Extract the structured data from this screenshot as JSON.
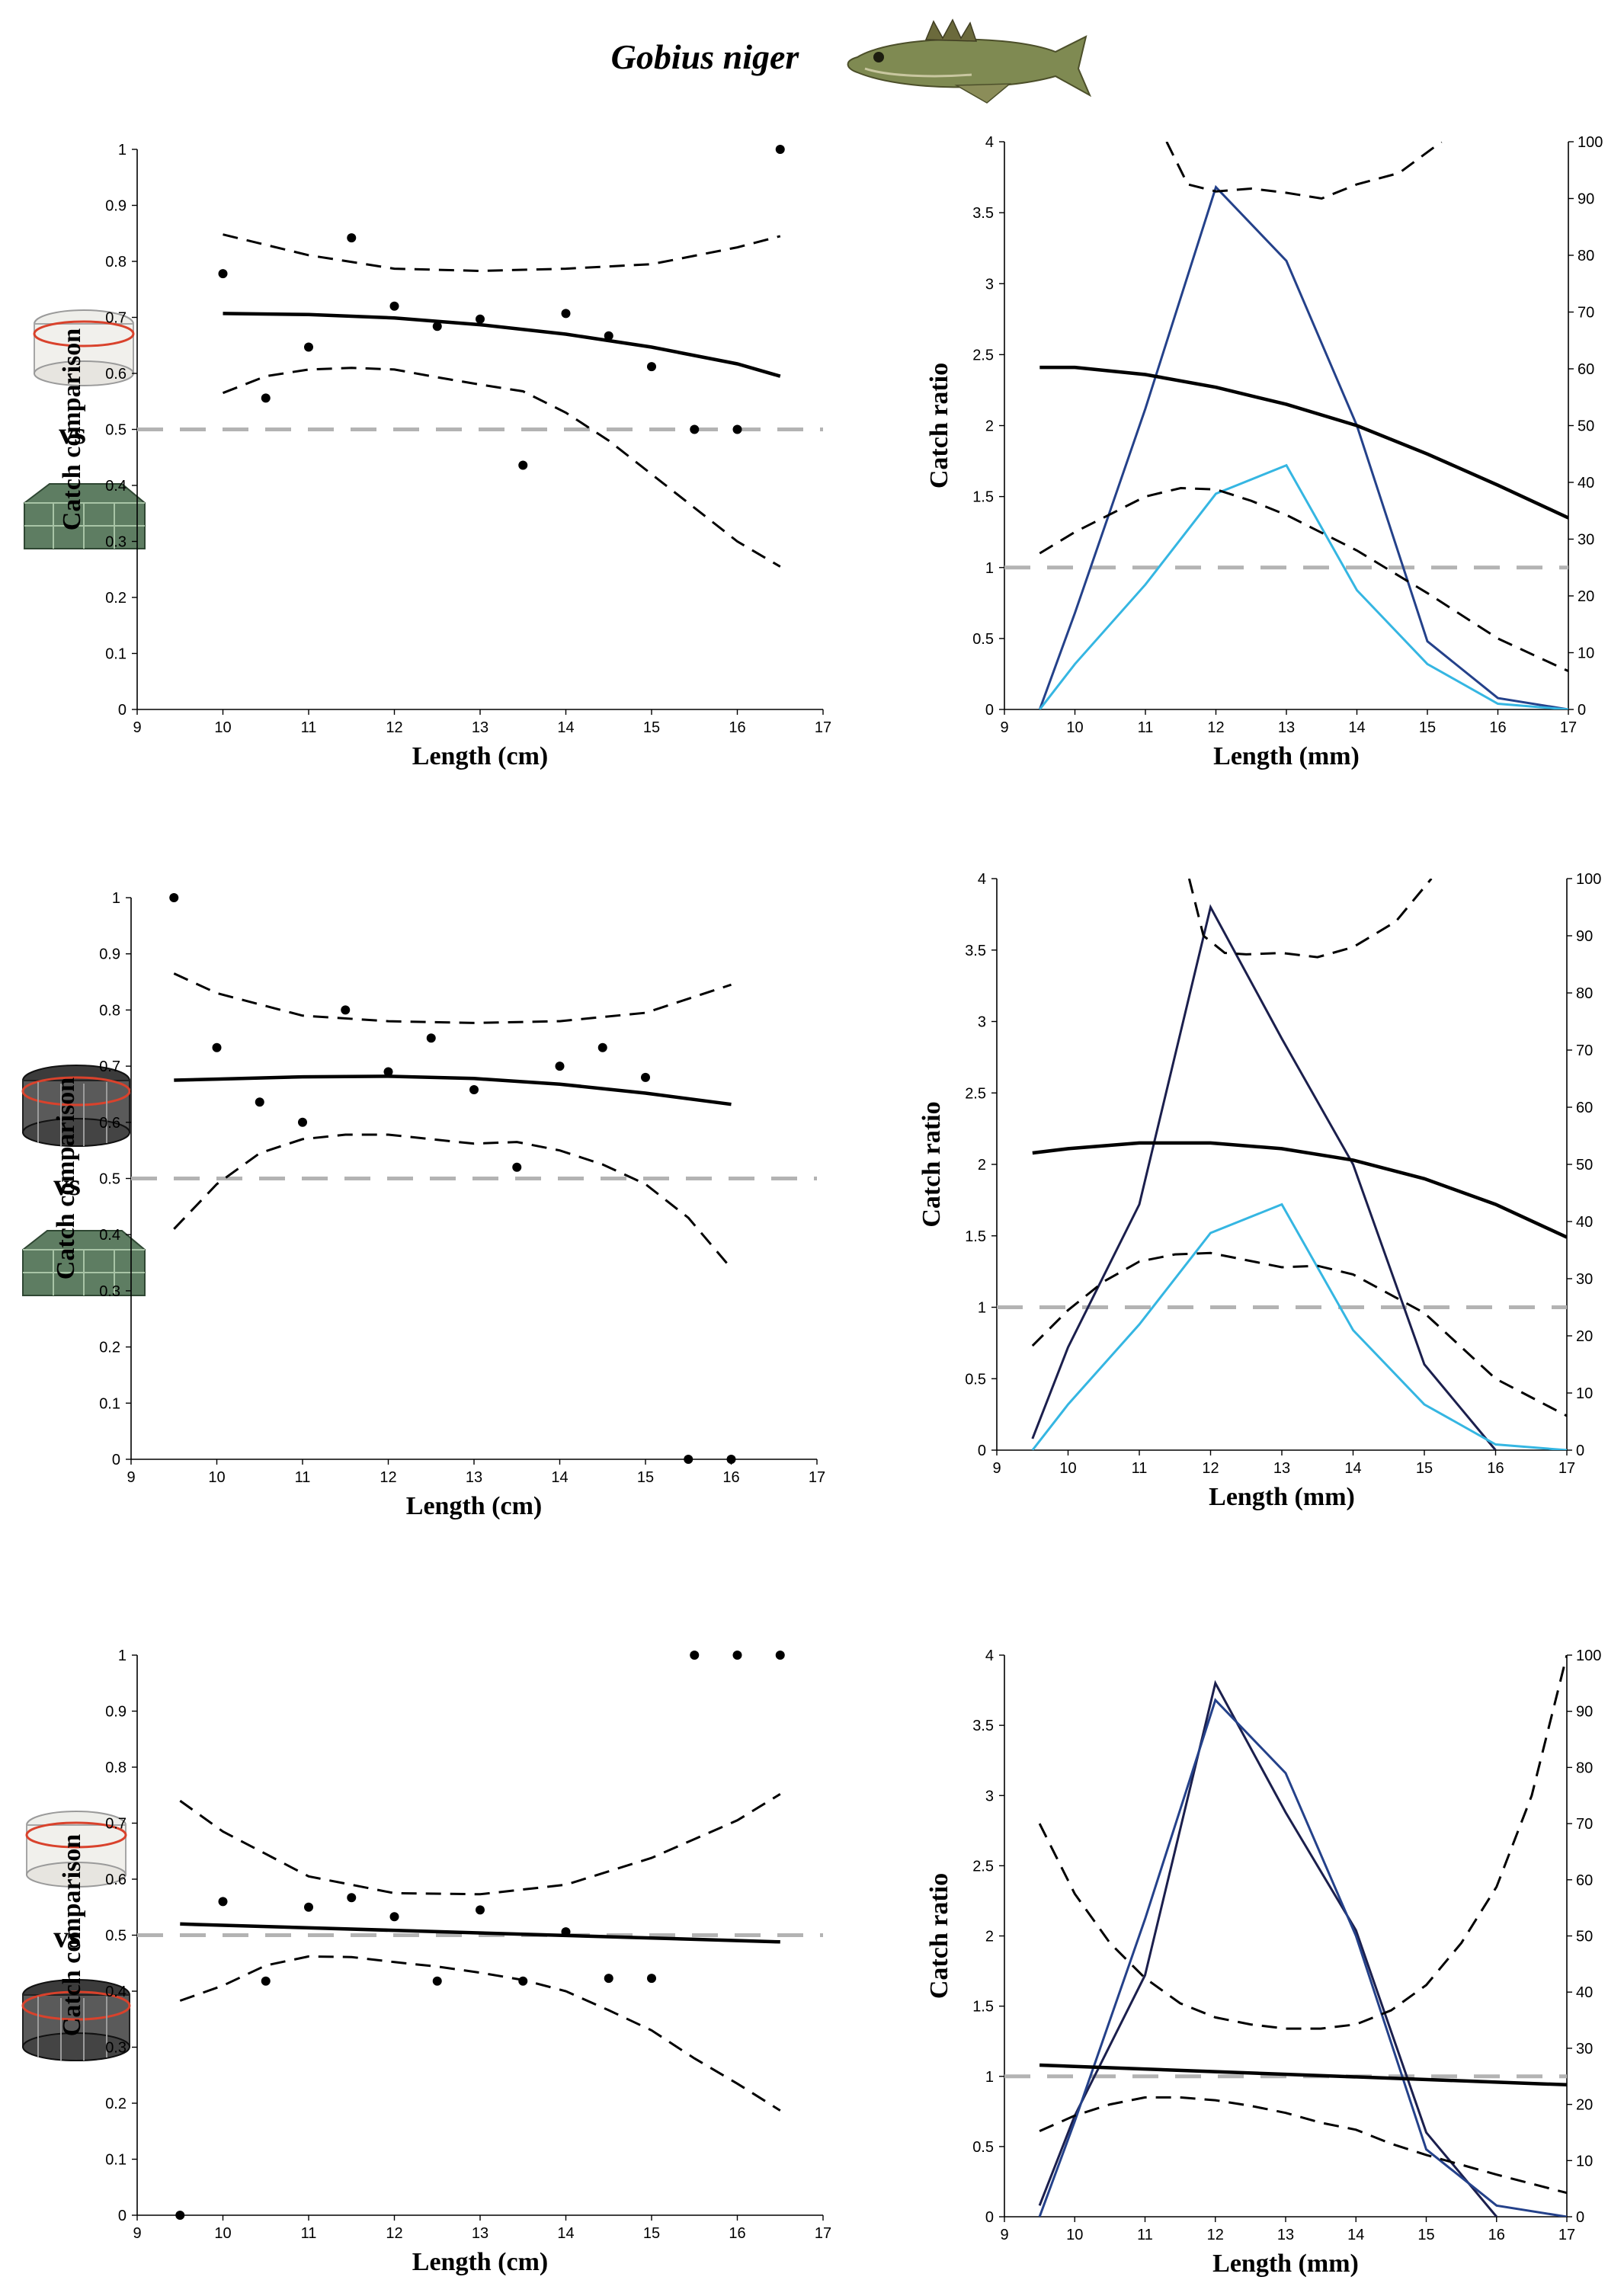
{
  "figure": {
    "title": "Gobius niger",
    "vs_label": "vs"
  },
  "colors": {
    "line": "#000000",
    "reference": "#b3b3b3",
    "dark_blue": "#24418a",
    "navy": "#1b1f4d",
    "light_blue": "#35b6e2"
  },
  "chart_data": [
    {
      "id": "row1-comparison",
      "type": "scatter",
      "xlabel": "Length (cm)",
      "ylabel": "Catch comparison",
      "xlim": [
        9,
        17
      ],
      "ylim": [
        0,
        1
      ],
      "xticks": [
        "9",
        "10",
        "11",
        "12",
        "13",
        "14",
        "15",
        "16",
        "17"
      ],
      "yticks": [
        "0",
        "0.1",
        "0.2",
        "0.3",
        "0.4",
        "0.5",
        "0.6",
        "0.7",
        "0.8",
        "0.9",
        "1"
      ],
      "reference_y": 0.5,
      "points": [
        [
          10,
          0.778
        ],
        [
          10.5,
          0.556
        ],
        [
          11,
          0.647
        ],
        [
          11.5,
          0.842
        ],
        [
          12,
          0.72
        ],
        [
          12.5,
          0.684
        ],
        [
          13,
          0.697
        ],
        [
          13.5,
          0.436
        ],
        [
          14,
          0.707
        ],
        [
          14.5,
          0.667
        ],
        [
          15,
          0.612
        ],
        [
          15.5,
          0.5
        ],
        [
          16,
          0.5
        ],
        [
          16.5,
          1.0
        ]
      ],
      "fit": {
        "x": [
          10,
          11,
          12,
          13,
          14,
          15,
          16,
          16.5
        ],
        "y": [
          0.707,
          0.705,
          0.699,
          0.687,
          0.67,
          0.647,
          0.617,
          0.595
        ]
      },
      "upper": {
        "x": [
          10,
          11,
          12,
          13,
          14,
          15,
          16,
          16.5
        ],
        "y": [
          0.848,
          0.811,
          0.787,
          0.783,
          0.787,
          0.795,
          0.825,
          0.845
        ]
      },
      "lower": {
        "x": [
          10,
          10.5,
          11,
          11.5,
          12,
          12.5,
          13,
          13.5,
          14,
          14.5,
          15,
          15.5,
          16,
          16.5
        ],
        "y": [
          0.565,
          0.595,
          0.607,
          0.61,
          0.607,
          0.593,
          0.58,
          0.568,
          0.53,
          0.48,
          0.42,
          0.36,
          0.3,
          0.255
        ]
      }
    },
    {
      "id": "row1-ratio",
      "type": "line",
      "xlabel": "Length (mm)",
      "ylabel": "Catch ratio",
      "xlim": [
        9,
        17
      ],
      "ylim": [
        0,
        4
      ],
      "y2lim": [
        0,
        100
      ],
      "xticks": [
        "9",
        "10",
        "11",
        "12",
        "13",
        "14",
        "15",
        "16",
        "17"
      ],
      "yticks": [
        "0",
        "0.5",
        "1",
        "1.5",
        "2",
        "2.5",
        "3",
        "3.5",
        "4"
      ],
      "y2ticks": [
        "0",
        "10",
        "20",
        "30",
        "40",
        "50",
        "60",
        "70",
        "80",
        "90",
        "100"
      ],
      "reference_y": 1,
      "fit": {
        "x": [
          9.5,
          10,
          11,
          12,
          13,
          14,
          15,
          16,
          17
        ],
        "y": [
          2.41,
          2.41,
          2.36,
          2.27,
          2.15,
          2.0,
          1.8,
          1.58,
          1.35
        ]
      },
      "upper": {
        "x": [
          11.3,
          11.6,
          12,
          12.5,
          13,
          13.5,
          14,
          14.6,
          15.2
        ],
        "y": [
          4.0,
          3.7,
          3.65,
          3.67,
          3.64,
          3.6,
          3.7,
          3.78,
          4.0
        ]
      },
      "lower": {
        "x": [
          9.5,
          10,
          11,
          11.5,
          12,
          12.5,
          13,
          14,
          15,
          16,
          17
        ],
        "y": [
          1.1,
          1.25,
          1.5,
          1.56,
          1.55,
          1.47,
          1.37,
          1.12,
          0.82,
          0.5,
          0.27
        ]
      },
      "series": [
        {
          "name": "dark_blue",
          "axis": "right",
          "x": [
            9.5,
            10,
            11,
            12,
            13,
            14,
            15,
            16,
            17
          ],
          "y": [
            0,
            17,
            53,
            92,
            79,
            50,
            12,
            2,
            0
          ]
        },
        {
          "name": "light_blue",
          "axis": "right",
          "x": [
            9.5,
            10,
            11,
            12,
            13,
            14,
            15,
            16,
            17
          ],
          "y": [
            0,
            8,
            22,
            38,
            43,
            21,
            8,
            1,
            0
          ]
        }
      ]
    },
    {
      "id": "row2-comparison",
      "type": "scatter",
      "xlabel": "Length (cm)",
      "ylabel": "Catch comparison",
      "xlim": [
        9,
        17
      ],
      "ylim": [
        0,
        1
      ],
      "xticks": [
        "9",
        "10",
        "11",
        "12",
        "13",
        "14",
        "15",
        "16",
        "17"
      ],
      "yticks": [
        "0",
        "0.1",
        "0.2",
        "0.3",
        "0.4",
        "0.5",
        "0.6",
        "0.7",
        "0.8",
        "0.9",
        "1"
      ],
      "reference_y": 0.5,
      "points": [
        [
          9.5,
          1.0
        ],
        [
          10,
          0.733
        ],
        [
          10.5,
          0.636
        ],
        [
          11,
          0.6
        ],
        [
          11.5,
          0.8
        ],
        [
          12,
          0.69
        ],
        [
          12.5,
          0.75
        ],
        [
          13,
          0.658
        ],
        [
          13.5,
          0.52
        ],
        [
          14,
          0.7
        ],
        [
          14.5,
          0.733
        ],
        [
          15,
          0.68
        ],
        [
          15.5,
          0.0
        ],
        [
          16,
          0.0
        ]
      ],
      "fit": {
        "x": [
          9.5,
          10,
          11,
          12,
          13,
          14,
          15,
          16
        ],
        "y": [
          0.675,
          0.677,
          0.681,
          0.682,
          0.678,
          0.668,
          0.652,
          0.632
        ]
      },
      "upper": {
        "x": [
          9.5,
          10,
          11,
          12,
          13,
          14,
          15,
          16
        ],
        "y": [
          0.865,
          0.83,
          0.79,
          0.78,
          0.777,
          0.78,
          0.795,
          0.845
        ]
      },
      "lower": {
        "x": [
          9.5,
          10,
          10.5,
          11,
          11.5,
          12,
          12.5,
          13,
          13.5,
          14,
          14.5,
          15,
          15.5,
          16
        ],
        "y": [
          0.41,
          0.49,
          0.545,
          0.57,
          0.578,
          0.578,
          0.57,
          0.562,
          0.565,
          0.55,
          0.525,
          0.49,
          0.43,
          0.34
        ]
      }
    },
    {
      "id": "row2-ratio",
      "type": "line",
      "xlabel": "Length (mm)",
      "ylabel": "Catch ratio",
      "xlim": [
        9,
        17
      ],
      "ylim": [
        0,
        4
      ],
      "y2lim": [
        0,
        100
      ],
      "xticks": [
        "9",
        "10",
        "11",
        "12",
        "13",
        "14",
        "15",
        "16",
        "17"
      ],
      "yticks": [
        "0",
        "0.5",
        "1",
        "1.5",
        "2",
        "2.5",
        "3",
        "3.5",
        "4"
      ],
      "y2ticks": [
        "0",
        "10",
        "20",
        "30",
        "40",
        "50",
        "60",
        "70",
        "80",
        "90",
        "100"
      ],
      "reference_y": 1,
      "fit": {
        "x": [
          9.5,
          10,
          11,
          12,
          13,
          14,
          15,
          16,
          17
        ],
        "y": [
          2.08,
          2.11,
          2.15,
          2.15,
          2.11,
          2.03,
          1.9,
          1.72,
          1.49
        ]
      },
      "upper": {
        "x": [
          11.7,
          11.9,
          12.2,
          12.5,
          13,
          13.5,
          14,
          14.6,
          15.1
        ],
        "y": [
          4.0,
          3.6,
          3.48,
          3.47,
          3.48,
          3.45,
          3.52,
          3.7,
          4.0
        ]
      },
      "lower": {
        "x": [
          9.5,
          10,
          10.5,
          11,
          11.5,
          12,
          12.5,
          13,
          13.5,
          14,
          15,
          16,
          17
        ],
        "y": [
          0.73,
          0.98,
          1.18,
          1.32,
          1.37,
          1.38,
          1.33,
          1.28,
          1.29,
          1.23,
          0.96,
          0.5,
          0.24
        ]
      },
      "series": [
        {
          "name": "navy",
          "axis": "right",
          "x": [
            9.5,
            10,
            11,
            12,
            13,
            14,
            15,
            16
          ],
          "y": [
            2,
            18,
            43,
            95,
            72,
            50,
            15,
            0
          ]
        },
        {
          "name": "light_blue",
          "axis": "right",
          "x": [
            9.5,
            10,
            11,
            12,
            13,
            14,
            15,
            16,
            17
          ],
          "y": [
            0,
            8,
            22,
            38,
            43,
            21,
            8,
            1,
            0
          ]
        }
      ]
    },
    {
      "id": "row3-comparison",
      "type": "scatter",
      "xlabel": "Length (cm)",
      "ylabel": "Catch comparison",
      "xlim": [
        9,
        17
      ],
      "ylim": [
        0,
        1
      ],
      "xticks": [
        "9",
        "10",
        "11",
        "12",
        "13",
        "14",
        "15",
        "16",
        "17"
      ],
      "yticks": [
        "0",
        "0.1",
        "0.2",
        "0.3",
        "0.4",
        "0.5",
        "0.6",
        "0.7",
        "0.8",
        "0.9",
        "1"
      ],
      "reference_y": 0.5,
      "points": [
        [
          9.5,
          0.0
        ],
        [
          10,
          0.56
        ],
        [
          10.5,
          0.418
        ],
        [
          11,
          0.55
        ],
        [
          11.5,
          0.567
        ],
        [
          12,
          0.533
        ],
        [
          12.5,
          0.418
        ],
        [
          13,
          0.545
        ],
        [
          13.5,
          0.418
        ],
        [
          14,
          0.506
        ],
        [
          14.5,
          0.423
        ],
        [
          15,
          0.423
        ],
        [
          15.5,
          1.0
        ],
        [
          16,
          1.0
        ],
        [
          16.5,
          1.0
        ]
      ],
      "fit": {
        "x": [
          9.5,
          16.5
        ],
        "y": [
          0.52,
          0.488
        ]
      },
      "upper": {
        "x": [
          9.5,
          10,
          11,
          12,
          13,
          14,
          15,
          16,
          16.5
        ],
        "y": [
          0.74,
          0.685,
          0.605,
          0.575,
          0.573,
          0.59,
          0.638,
          0.705,
          0.752
        ]
      },
      "lower": {
        "x": [
          9.5,
          10,
          10.5,
          11,
          11.5,
          12,
          12.5,
          13,
          13.5,
          14,
          14.5,
          15,
          15.5,
          16,
          16.5
        ],
        "y": [
          0.383,
          0.41,
          0.446,
          0.462,
          0.461,
          0.452,
          0.444,
          0.433,
          0.42,
          0.4,
          0.366,
          0.33,
          0.28,
          0.235,
          0.187
        ]
      }
    },
    {
      "id": "row3-ratio",
      "type": "line",
      "xlabel": "Length (mm)",
      "ylabel": "Catch ratio",
      "xlim": [
        9,
        17
      ],
      "ylim": [
        0,
        4
      ],
      "y2lim": [
        0,
        100
      ],
      "xticks": [
        "9",
        "10",
        "11",
        "12",
        "13",
        "14",
        "15",
        "16",
        "17"
      ],
      "yticks": [
        "0",
        "0.5",
        "1",
        "1.5",
        "2",
        "2.5",
        "3",
        "3.5",
        "4"
      ],
      "y2ticks": [
        "0",
        "10",
        "20",
        "30",
        "40",
        "50",
        "60",
        "70",
        "80",
        "90",
        "100"
      ],
      "reference_y": 1,
      "fit": {
        "x": [
          9.5,
          17
        ],
        "y": [
          1.08,
          0.94
        ]
      },
      "upper": {
        "x": [
          9.5,
          10,
          10.5,
          11,
          11.5,
          12,
          12.5,
          13,
          13.5,
          14,
          14.5,
          15,
          15.5,
          16,
          16.5,
          17
        ],
        "y": [
          2.8,
          2.3,
          1.95,
          1.7,
          1.52,
          1.42,
          1.37,
          1.34,
          1.34,
          1.37,
          1.47,
          1.65,
          1.95,
          2.35,
          3.0,
          4.0
        ]
      },
      "lower": {
        "x": [
          9.5,
          10,
          10.5,
          11,
          11.5,
          12,
          12.5,
          13,
          13.5,
          14,
          14.5,
          15,
          16,
          17
        ],
        "y": [
          0.61,
          0.72,
          0.8,
          0.85,
          0.85,
          0.83,
          0.79,
          0.74,
          0.67,
          0.62,
          0.52,
          0.44,
          0.3,
          0.17
        ]
      },
      "series": [
        {
          "name": "navy",
          "axis": "right",
          "x": [
            9.5,
            10,
            11,
            12,
            13,
            14,
            15,
            16
          ],
          "y": [
            2,
            18,
            43,
            95,
            72,
            51,
            15,
            0
          ]
        },
        {
          "name": "dark_blue",
          "axis": "right",
          "x": [
            9.5,
            10,
            11,
            12,
            13,
            14,
            15,
            16,
            17
          ],
          "y": [
            0,
            17,
            53,
            92,
            79,
            50,
            12,
            2,
            0
          ]
        }
      ]
    }
  ]
}
